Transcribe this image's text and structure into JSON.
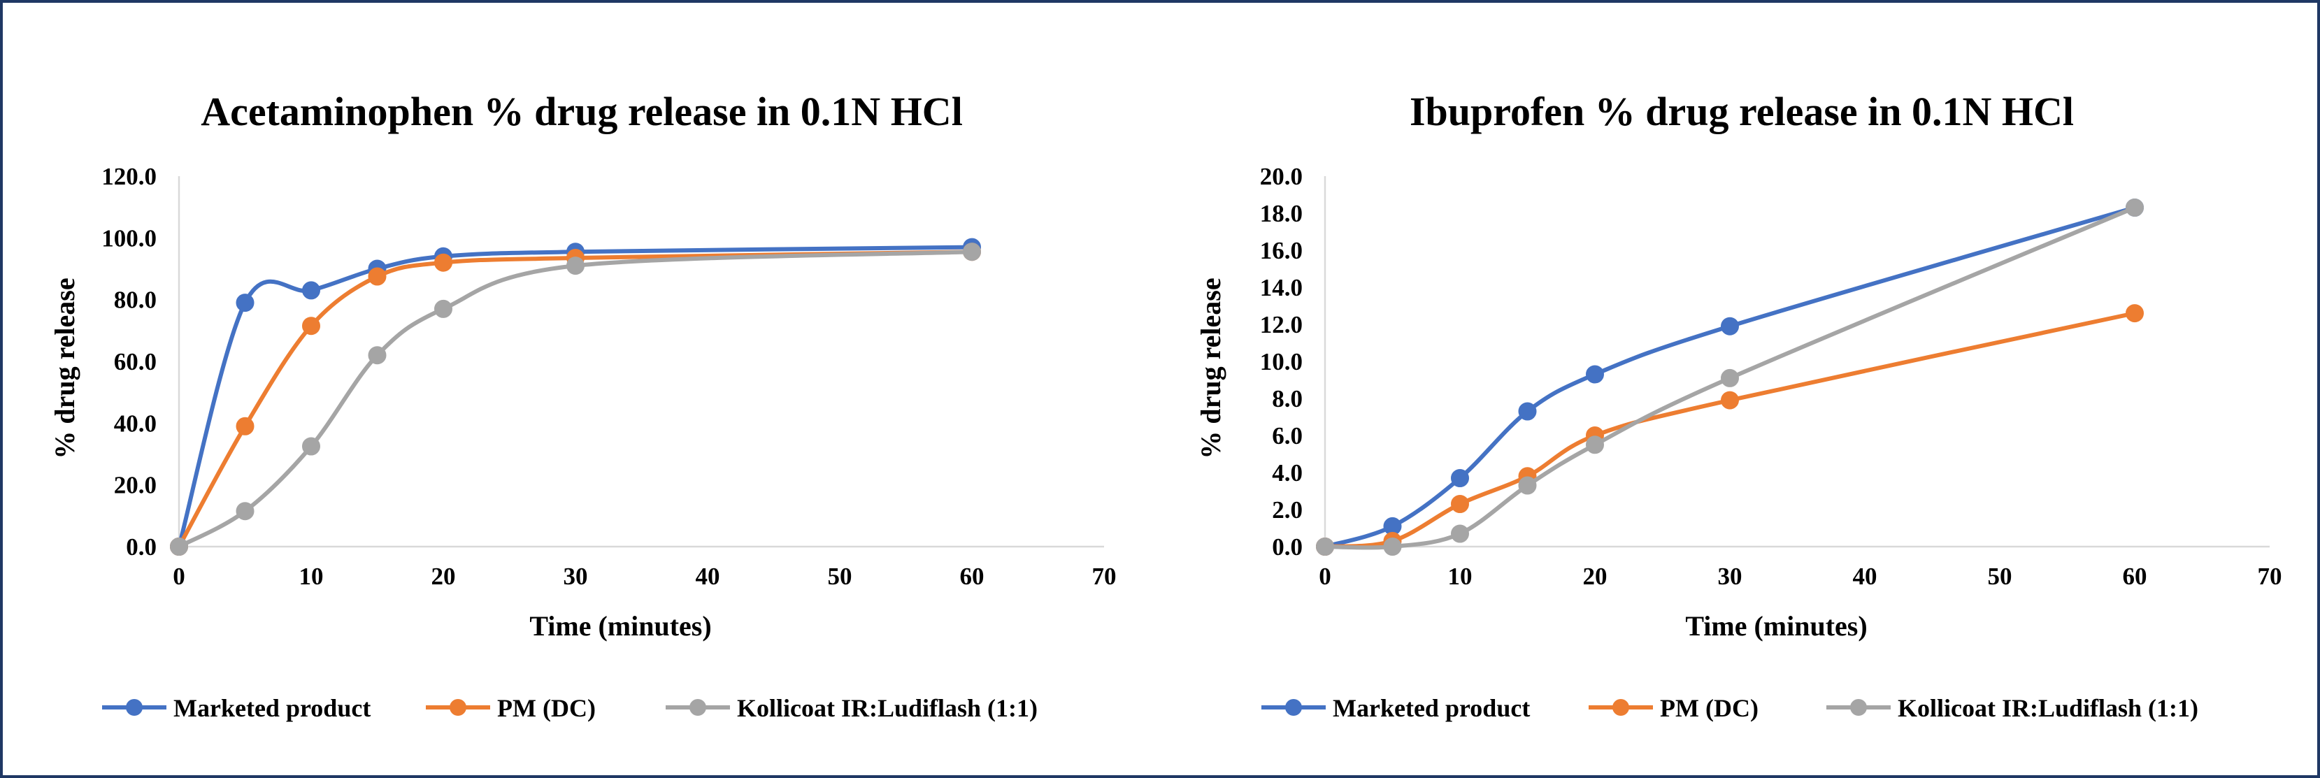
{
  "chart_data": [
    {
      "type": "line",
      "title": "Acetaminophen % drug release in 0.1N HCl",
      "xlabel": "Time (minutes)",
      "ylabel": "% drug release",
      "xlim": [
        0,
        70
      ],
      "ylim": [
        0,
        120
      ],
      "xticks": [
        "0",
        "10",
        "20",
        "30",
        "40",
        "50",
        "60",
        "70"
      ],
      "yticks": [
        "0.0",
        "20.0",
        "40.0",
        "60.0",
        "80.0",
        "100.0",
        "120.0"
      ],
      "grid": false,
      "legend": "bottom",
      "x": [
        0,
        5,
        10,
        15,
        20,
        30,
        60
      ],
      "series": [
        {
          "name": "Marketed product",
          "color": "#4472c4",
          "values": [
            0,
            79,
            83,
            90,
            94,
            95.5,
            97
          ]
        },
        {
          "name": "PM (DC)",
          "color": "#ed7d31",
          "values": [
            0,
            39,
            71.5,
            87.5,
            92,
            93.5,
            95.5
          ]
        },
        {
          "name": "Kollicoat IR:Ludiflash (1:1)",
          "color": "#a5a5a5",
          "values": [
            0,
            11.5,
            32.5,
            62,
            77,
            91,
            95.5
          ]
        }
      ]
    },
    {
      "type": "line",
      "title": "Ibuprofen % drug release in 0.1N HCl",
      "xlabel": "Time (minutes)",
      "ylabel": "% drug release",
      "xlim": [
        0,
        70
      ],
      "ylim": [
        0,
        20
      ],
      "xticks": [
        "0",
        "10",
        "20",
        "30",
        "40",
        "50",
        "60",
        "70"
      ],
      "yticks": [
        "0.0",
        "2.0",
        "4.0",
        "6.0",
        "8.0",
        "10.0",
        "12.0",
        "14.0",
        "16.0",
        "18.0",
        "20.0"
      ],
      "grid": false,
      "legend": "bottom",
      "x": [
        0,
        5,
        10,
        15,
        20,
        30,
        60
      ],
      "series": [
        {
          "name": "Marketed product",
          "color": "#4472c4",
          "values": [
            0,
            1.1,
            3.7,
            7.3,
            9.3,
            11.9,
            18.3
          ]
        },
        {
          "name": "PM (DC)",
          "color": "#ed7d31",
          "values": [
            0,
            0.3,
            2.3,
            3.8,
            6.0,
            7.9,
            12.6
          ]
        },
        {
          "name": "Kollicoat IR:Ludiflash (1:1)",
          "color": "#a5a5a5",
          "values": [
            0,
            0.0,
            0.7,
            3.3,
            5.5,
            9.1,
            18.3
          ]
        }
      ]
    }
  ]
}
